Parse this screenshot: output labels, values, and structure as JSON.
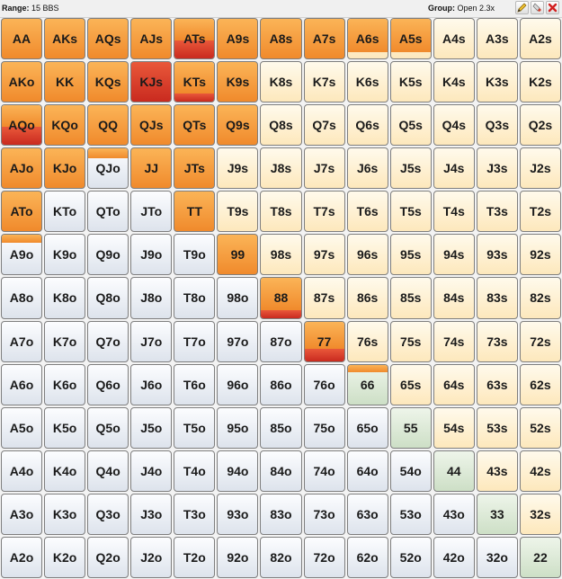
{
  "toolbar": {
    "range_label": "Range:",
    "range_value": "15 BBS",
    "group_label": "Group:",
    "group_value": "Open 2.3x"
  },
  "colors": {
    "raise": "#f5962f",
    "jam": "#d3361f",
    "suited": "#fdeec8",
    "offsuit": "#e9edf3",
    "pair": "#d9e8d2"
  },
  "ranks": [
    "A",
    "K",
    "Q",
    "J",
    "T",
    "9",
    "8",
    "7",
    "6",
    "5",
    "4",
    "3",
    "2"
  ],
  "grid": [
    [
      "AA",
      "AKs",
      "AQs",
      "AJs",
      "ATs",
      "A9s",
      "A8s",
      "A7s",
      "A6s",
      "A5s",
      "A4s",
      "A3s",
      "A2s"
    ],
    [
      "AKo",
      "KK",
      "KQs",
      "KJs",
      "KTs",
      "K9s",
      "K8s",
      "K7s",
      "K6s",
      "K5s",
      "K4s",
      "K3s",
      "K2s"
    ],
    [
      "AQo",
      "KQo",
      "QQ",
      "QJs",
      "QTs",
      "Q9s",
      "Q8s",
      "Q7s",
      "Q6s",
      "Q5s",
      "Q4s",
      "Q3s",
      "Q2s"
    ],
    [
      "AJo",
      "KJo",
      "QJo",
      "JJ",
      "JTs",
      "J9s",
      "J8s",
      "J7s",
      "J6s",
      "J5s",
      "J4s",
      "J3s",
      "J2s"
    ],
    [
      "ATo",
      "KTo",
      "QTo",
      "JTo",
      "TT",
      "T9s",
      "T8s",
      "T7s",
      "T6s",
      "T5s",
      "T4s",
      "T3s",
      "T2s"
    ],
    [
      "A9o",
      "K9o",
      "Q9o",
      "J9o",
      "T9o",
      "99",
      "98s",
      "97s",
      "96s",
      "95s",
      "94s",
      "93s",
      "92s"
    ],
    [
      "A8o",
      "K8o",
      "Q8o",
      "J8o",
      "T8o",
      "98o",
      "88",
      "87s",
      "86s",
      "85s",
      "84s",
      "83s",
      "82s"
    ],
    [
      "A7o",
      "K7o",
      "Q7o",
      "J7o",
      "T7o",
      "97o",
      "87o",
      "77",
      "76s",
      "75s",
      "74s",
      "73s",
      "72s"
    ],
    [
      "A6o",
      "K6o",
      "Q6o",
      "J6o",
      "T6o",
      "96o",
      "86o",
      "76o",
      "66",
      "65s",
      "64s",
      "63s",
      "62s"
    ],
    [
      "A5o",
      "K5o",
      "Q5o",
      "J5o",
      "T5o",
      "95o",
      "85o",
      "75o",
      "65o",
      "55",
      "54s",
      "53s",
      "52s"
    ],
    [
      "A4o",
      "K4o",
      "Q4o",
      "J4o",
      "T4o",
      "94o",
      "84o",
      "74o",
      "64o",
      "54o",
      "44",
      "43s",
      "42s"
    ],
    [
      "A3o",
      "K3o",
      "Q3o",
      "J3o",
      "T3o",
      "93o",
      "83o",
      "73o",
      "63o",
      "53o",
      "43o",
      "33",
      "32s"
    ],
    [
      "A2o",
      "K2o",
      "Q2o",
      "J2o",
      "T2o",
      "92o",
      "82o",
      "72o",
      "62o",
      "52o",
      "42o",
      "32o",
      "22"
    ]
  ],
  "actions": {
    "AA": {
      "raise": 1,
      "jam": 0
    },
    "AKs": {
      "raise": 1,
      "jam": 0
    },
    "AQs": {
      "raise": 1,
      "jam": 0
    },
    "AJs": {
      "raise": 1,
      "jam": 0
    },
    "ATs": {
      "raise": 0.55,
      "jam": 0.45
    },
    "A9s": {
      "raise": 1,
      "jam": 0
    },
    "A8s": {
      "raise": 1,
      "jam": 0
    },
    "A7s": {
      "raise": 1,
      "jam": 0
    },
    "A6s": {
      "raise": 0.85,
      "jam": 0
    },
    "A5s": {
      "raise": 0.85,
      "jam": 0
    },
    "AKo": {
      "raise": 1,
      "jam": 0
    },
    "KK": {
      "raise": 1,
      "jam": 0
    },
    "KQs": {
      "raise": 1,
      "jam": 0
    },
    "KJs": {
      "raise": 0,
      "jam": 1
    },
    "KTs": {
      "raise": 0.8,
      "jam": 0.2
    },
    "K9s": {
      "raise": 1,
      "jam": 0
    },
    "AQo": {
      "raise": 0.55,
      "jam": 0.45
    },
    "KQo": {
      "raise": 1,
      "jam": 0
    },
    "QQ": {
      "raise": 1,
      "jam": 0
    },
    "QJs": {
      "raise": 1,
      "jam": 0
    },
    "QTs": {
      "raise": 1,
      "jam": 0
    },
    "Q9s": {
      "raise": 1,
      "jam": 0
    },
    "AJo": {
      "raise": 1,
      "jam": 0
    },
    "KJo": {
      "raise": 1,
      "jam": 0
    },
    "QJo": {
      "raise": 0.25,
      "jam": 0
    },
    "JJ": {
      "raise": 1,
      "jam": 0
    },
    "JTs": {
      "raise": 1,
      "jam": 0
    },
    "ATo": {
      "raise": 1,
      "jam": 0
    },
    "TT": {
      "raise": 1,
      "jam": 0
    },
    "A9o": {
      "raise": 0.2,
      "jam": 0
    },
    "99": {
      "raise": 1,
      "jam": 0
    },
    "88": {
      "raise": 0.8,
      "jam": 0.2
    },
    "77": {
      "raise": 0.7,
      "jam": 0.3
    },
    "66": {
      "raise": 0.2,
      "jam": 0
    }
  }
}
